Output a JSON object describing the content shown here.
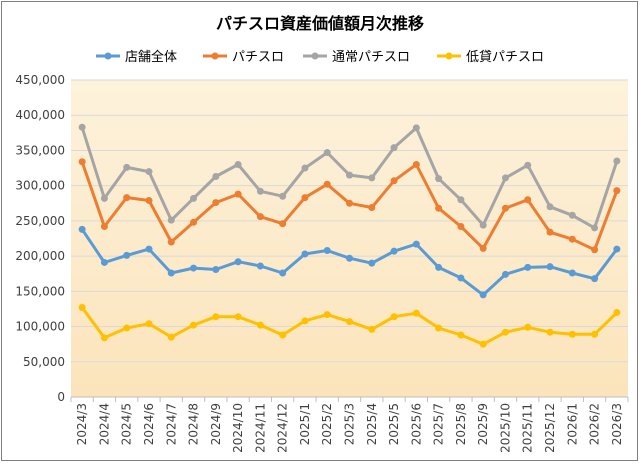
{
  "chart_data": {
    "type": "line",
    "title": "パチスロ資産価値額月次推移",
    "xlabel": "",
    "ylabel": "",
    "ylim": [
      0,
      450000
    ],
    "yticks": [
      0,
      50000,
      100000,
      150000,
      200000,
      250000,
      300000,
      350000,
      400000,
      450000
    ],
    "ytick_labels": [
      "0",
      "50,000",
      "100,000",
      "150,000",
      "200,000",
      "250,000",
      "300,000",
      "350,000",
      "400,000",
      "450,000"
    ],
    "grid": true,
    "legend_position": "top",
    "categories": [
      "2024/3",
      "2024/4",
      "2024/5",
      "2024/6",
      "2024/7",
      "2024/8",
      "2024/9",
      "2024/10",
      "2024/11",
      "2024/12",
      "2025/1",
      "2025/2",
      "2025/3",
      "2025/4",
      "2025/5",
      "2025/6",
      "2025/7",
      "2025/8",
      "2025/9",
      "2025/10",
      "2025/11",
      "2025/12",
      "2026/1",
      "2026/2",
      "2026/3"
    ],
    "series": [
      {
        "name": "店舗全体",
        "color": "#5b9bd5",
        "values": [
          238000,
          191000,
          201000,
          210000,
          176000,
          183000,
          181000,
          192000,
          186000,
          176000,
          203000,
          208000,
          197000,
          190000,
          207000,
          217000,
          184000,
          169000,
          145000,
          174000,
          184000,
          185000,
          176000,
          168000,
          210000
        ]
      },
      {
        "name": "パチスロ",
        "color": "#ed7d31",
        "values": [
          334000,
          242000,
          283000,
          279000,
          220000,
          248000,
          276000,
          288000,
          256000,
          246000,
          283000,
          302000,
          275000,
          269000,
          307000,
          330000,
          268000,
          242000,
          211000,
          268000,
          280000,
          234000,
          224000,
          209000,
          293000
        ]
      },
      {
        "name": "通常パチスロ",
        "color": "#a5a5a5",
        "values": [
          383000,
          282000,
          326000,
          320000,
          251000,
          282000,
          313000,
          330000,
          292000,
          285000,
          325000,
          347000,
          315000,
          311000,
          354000,
          382000,
          310000,
          280000,
          244000,
          311000,
          329000,
          270000,
          258000,
          240000,
          335000
        ]
      },
      {
        "name": "低貸パチスロ",
        "color": "#ffc000",
        "values": [
          127000,
          84000,
          98000,
          104000,
          85000,
          102000,
          114000,
          114000,
          102000,
          88000,
          108000,
          117000,
          107000,
          96000,
          114000,
          119000,
          98000,
          88000,
          75000,
          92000,
          99000,
          92000,
          89000,
          89000,
          120000
        ]
      }
    ]
  }
}
